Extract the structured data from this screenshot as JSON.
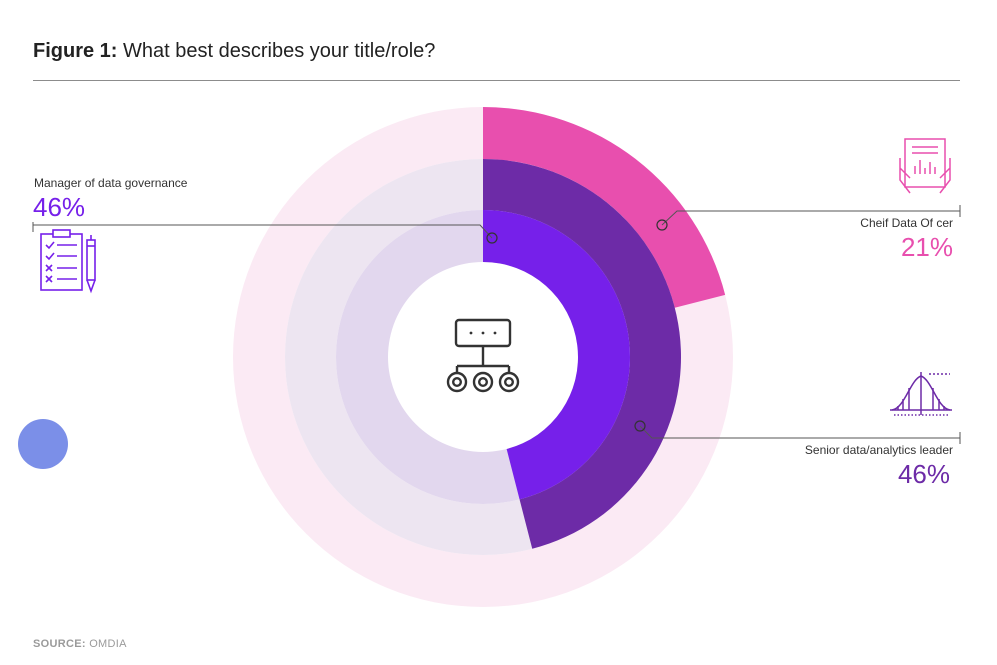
{
  "figure": {
    "label": "Figure 1:",
    "question": "What best describes your title/role?"
  },
  "chart_data": {
    "type": "pie",
    "title": "What best describes your title/role?",
    "series": [
      {
        "name": "Cheif Data Of cer",
        "value": 21,
        "value_label": "21%",
        "color": "#e84fae"
      },
      {
        "name": "Senior data/analytics leader",
        "value": 46,
        "value_label": "46%",
        "color": "#6d2ba7"
      },
      {
        "name": "Manager of data governance",
        "value": 46,
        "value_label": "46%",
        "color": "#7620ea"
      }
    ],
    "track_colors": [
      "#fbeaf4",
      "#ede5f1",
      "#e2d7ee"
    ]
  },
  "icons": {
    "center": "org-chart-icon",
    "manager": "checklist-clipboard-icon",
    "cdo": "hands-document-icon",
    "senior": "bell-curve-icon"
  },
  "decor_color": "#7b8fe8",
  "source": {
    "label": "SOURCE:",
    "value": "OMDIA"
  }
}
